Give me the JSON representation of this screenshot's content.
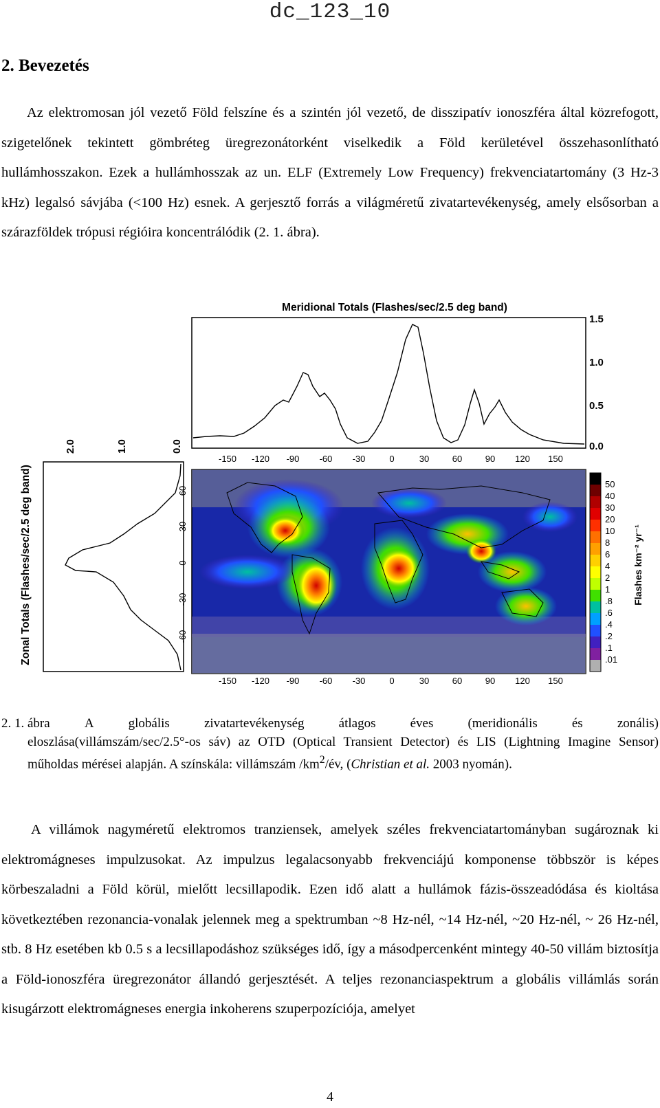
{
  "header_id": "dc_123_10",
  "section": {
    "number": "2.",
    "title": "Bevezetés"
  },
  "paragraph1": "Az elektromosan jól vezető Föld felszíne és a szintén jól vezető, de disszipatív ionoszféra által közrefogott, szigetelőnek tekintett gömbréteg üregrezonátorként viselkedik a Föld kerületével összehasonlítható hullámhosszakon. Ezek a hullámhosszak az un. ELF (Extremely Low Frequency) frekvenciatartomány (3 Hz-3 kHz) legalsó sávjába (<100 Hz) esnek. A gerjesztő forrás a világméretű zivatartevékenység, amely elsősorban a szárazföldek trópusi régióira koncentrálódik (2. 1. ábra).",
  "figure": {
    "meridional_title": "Meridional Totals (Flashes/sec/2.5 deg band)",
    "meridional_ticks": [
      "1.5",
      "1.0",
      "0.5",
      "0.0"
    ],
    "zonal_title": "Zonal Totals (Flashes/sec/2.5 deg band)",
    "zonal_ticks": [
      "2.0",
      "1.0",
      "0.0"
    ],
    "lon_ticks": [
      "-150",
      "-120",
      "-90",
      "-60",
      "-30",
      "0",
      "30",
      "60",
      "90",
      "120",
      "150"
    ],
    "lat_ticks": [
      "60",
      "30",
      "0",
      "-30",
      "-60"
    ],
    "colorbar_labels": [
      "50",
      "40",
      "30",
      "20",
      "10",
      "8",
      "6",
      "4",
      "2",
      "1",
      ".8",
      ".6",
      ".4",
      ".2",
      ".1",
      ".01"
    ],
    "colorbar_colors": [
      "#000000",
      "#6e0000",
      "#b00000",
      "#e00000",
      "#ff3000",
      "#ff7000",
      "#ffa000",
      "#ffd000",
      "#ffff00",
      "#c0ff00",
      "#40e000",
      "#00c0a0",
      "#00a0ff",
      "#2050ff",
      "#4020c0",
      "#8020a0",
      "#b0b0b0"
    ],
    "colorbar_unit": "Flashes km⁻² yr⁻¹"
  },
  "caption": {
    "label": "2. 1. ábra",
    "line1_words": [
      "A",
      "globális",
      "zivatartevékenység",
      "átlagos",
      "éves",
      "(meridionális",
      "és",
      "zonális)"
    ],
    "rest_before_sup": "eloszlása(villámszám/sec/2.5°-os sáv) az OTD (Optical Transient Detector) és LIS (Lightning Imagine Sensor) műholdas mérései alapján. A színskála: villámszám /km",
    "sup": "2",
    "rest_after_sup": "/év, (",
    "italic": "Christian et al.",
    "tail": " 2003 nyomán)."
  },
  "paragraph2": "A villámok nagyméretű elektromos tranziensek, amelyek széles frekvenciatartományban sugároznak ki elektromágneses impulzusokat. Az impulzus legalacsonyabb frekvenciájú komponense többször is képes körbeszaladni a Föld körül, mielőtt lecsillapodik. Ezen idő alatt a hullámok fázis-összeadódása és kioltása következtében rezonancia-vonalak jelennek meg a spektrumban ~8 Hz-nél, ~14 Hz-nél, ~20 Hz-nél, ~ 26 Hz-nél, stb. 8 Hz esetében kb 0.5 s a lecsillapodáshoz szükséges idő, így a másodpercenként mintegy 40-50 villám biztosítja a Föld-ionoszféra üregrezonátor állandó gerjesztését. A teljes rezonanciaspektrum a globális villámlás során kisugárzott elektromágneses energia inkoherens szuperpozíciója, amelyet",
  "page_number": "4"
}
